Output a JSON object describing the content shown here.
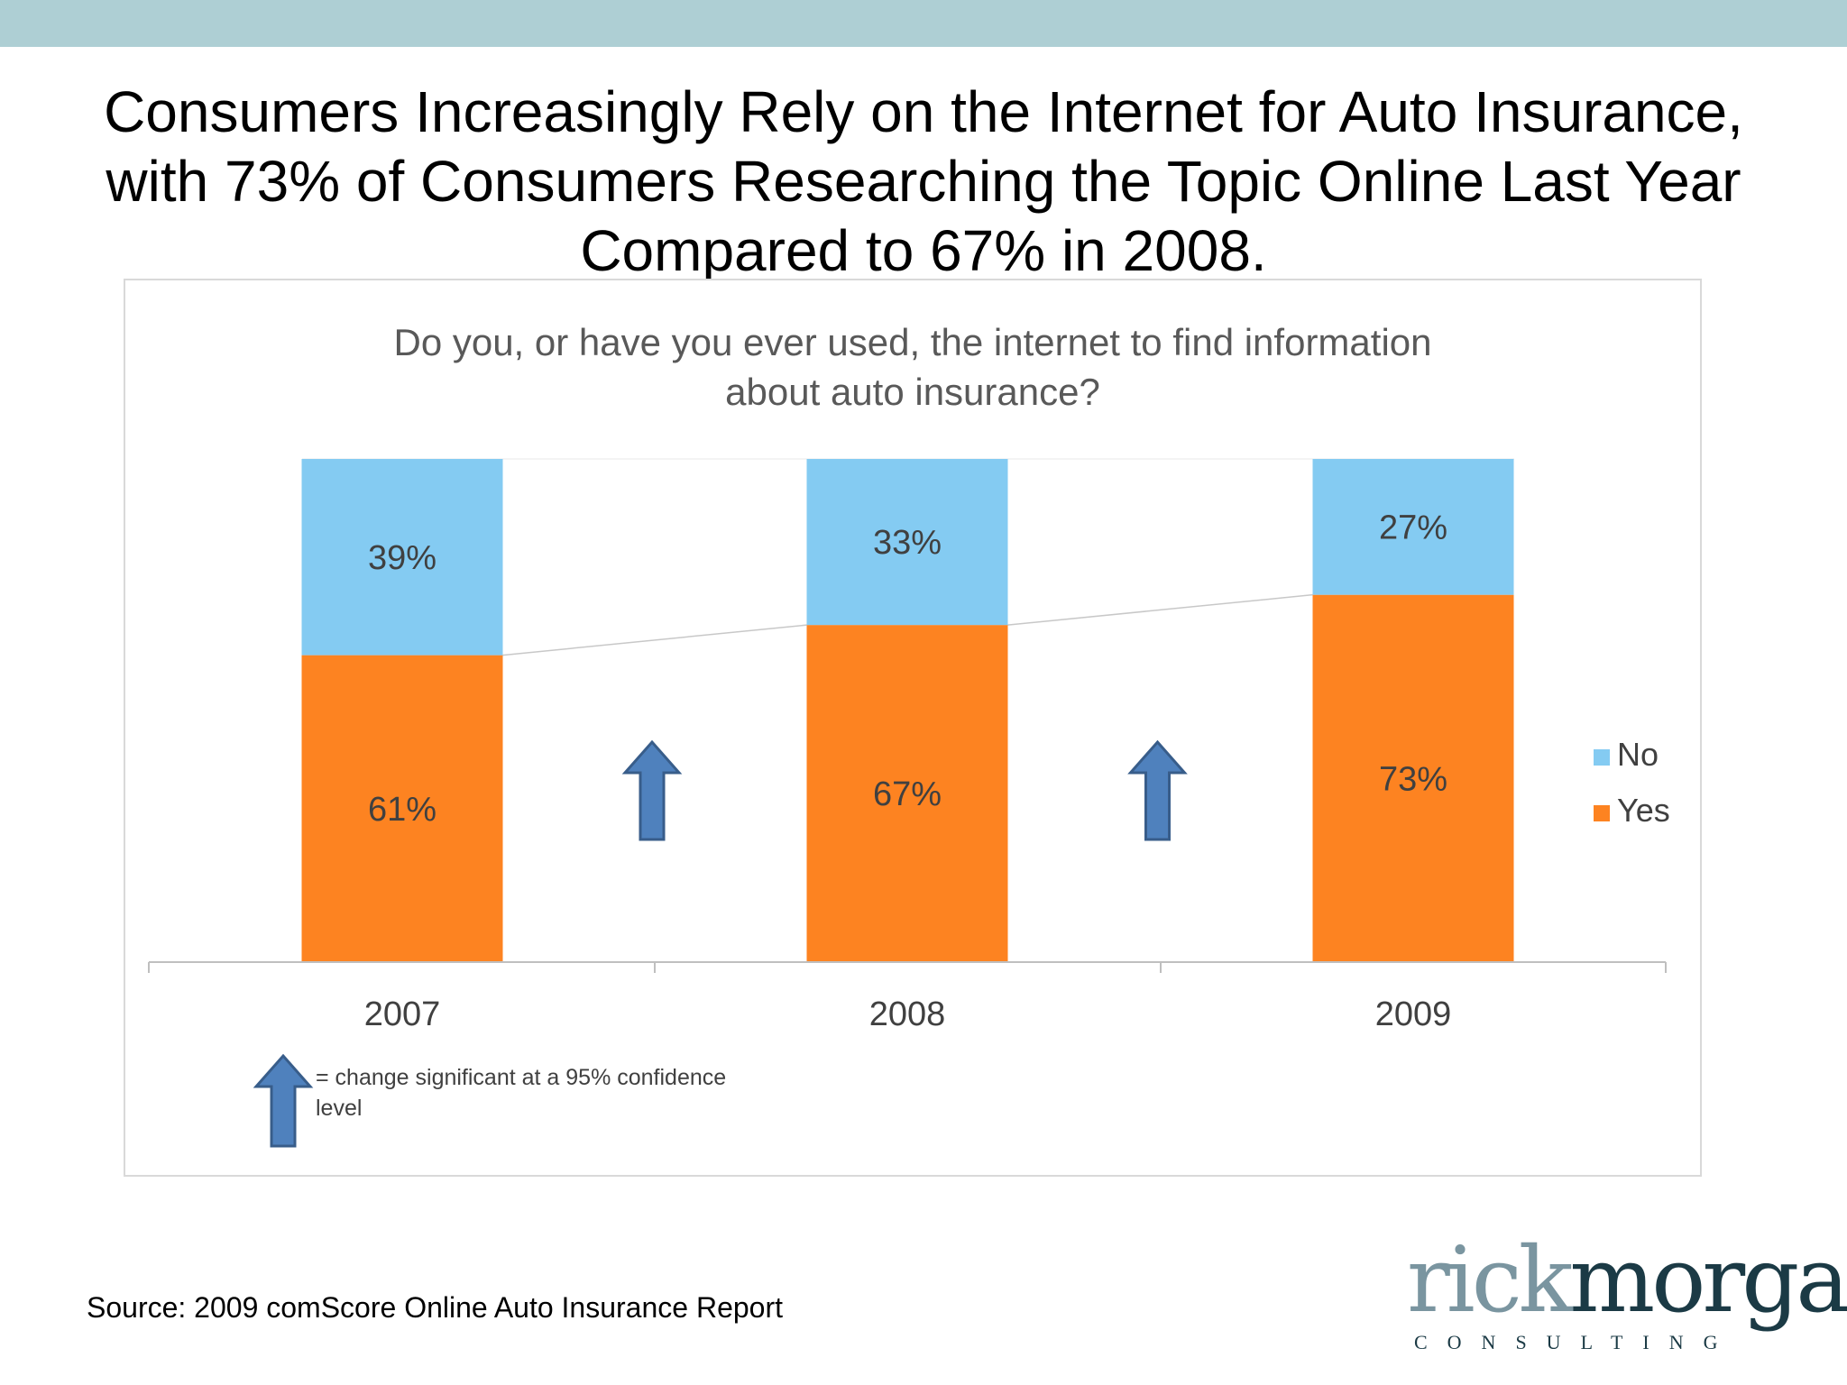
{
  "slide": {
    "title_lines": [
      "Consumers Increasingly Rely on the Internet for Auto Insurance,",
      "with 73% of Consumers Researching the Topic Online Last Year",
      "Compared to 67% in 2008."
    ],
    "source": "Source: 2009 comScore Online Auto Insurance Report",
    "logo": {
      "part1": "rick",
      "part2": "morgan",
      "subtitle": "CONSULTING"
    }
  },
  "colors": {
    "band": "#aecfd4",
    "no": "#84cbf2",
    "yes": "#fd8321",
    "arrow_fill": "#4f81bd",
    "arrow_stroke": "#385d8a",
    "axis": "#bfbfbf",
    "label": "#404040"
  },
  "chart_data": {
    "type": "bar",
    "stacked": true,
    "title_lines": [
      "Do you, or have you ever used, the internet to find information",
      "about auto insurance?"
    ],
    "categories": [
      "2007",
      "2008",
      "2009"
    ],
    "series": [
      {
        "name": "Yes",
        "values": [
          61,
          67,
          73
        ],
        "labels": [
          "61%",
          "67%",
          "73%"
        ]
      },
      {
        "name": "No",
        "values": [
          39,
          33,
          27
        ],
        "labels": [
          "39%",
          "33%",
          "27%"
        ]
      }
    ],
    "ylim": [
      0,
      100
    ],
    "legend": [
      "No",
      "Yes"
    ],
    "legend_position": "right",
    "significance_arrows_between": [
      [
        "2007",
        "2008"
      ],
      [
        "2008",
        "2009"
      ]
    ],
    "note": "= change significant at a 95% confidence level"
  }
}
